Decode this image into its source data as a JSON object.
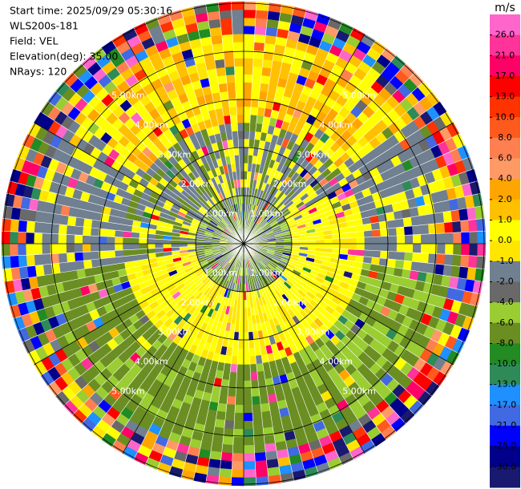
{
  "chart_data": {
    "type": "ppi",
    "header": [
      "Start time: 2025/09/29 05:30:16",
      "WLS200s-181",
      "Field: VEL",
      "Elevation(deg): 35.00",
      "NRays: 120"
    ],
    "range_rings": [
      "1.00km",
      "2.00km",
      "3.00km",
      "4.00km",
      "5.00km"
    ],
    "colorbar": {
      "unit": "m/s",
      "colors": [
        "#ff66cc",
        "#ff3399",
        "#ff0066",
        "#ff0000",
        "#ff3300",
        "#ff5a1e",
        "#ff7f50",
        "#ff9966",
        "#ffa500",
        "#ffc000",
        "#ffff00",
        "#ffe600",
        "#708090",
        "#696969",
        "#9acd32",
        "#6b8e23",
        "#228b22",
        "#2e8b57",
        "#1e90ff",
        "#4169e1",
        "#0000ff",
        "#00008b",
        "#191970"
      ],
      "ticks": [
        {
          "value": 26,
          "label": "26.0"
        },
        {
          "value": 21,
          "label": "21.0"
        },
        {
          "value": 17,
          "label": "17.0"
        },
        {
          "value": 13,
          "label": "13.0"
        },
        {
          "value": 10,
          "label": "10.0"
        },
        {
          "value": 8,
          "label": "8.0"
        },
        {
          "value": 6,
          "label": "6.0"
        },
        {
          "value": 4,
          "label": "4.0"
        },
        {
          "value": 2,
          "label": "2.0"
        },
        {
          "value": 1,
          "label": "1.0"
        },
        {
          "value": 0,
          "label": "0.0"
        },
        {
          "value": -1,
          "label": "-1.0"
        },
        {
          "value": -2,
          "label": "-2.0"
        },
        {
          "value": -4,
          "label": "-4.0"
        },
        {
          "value": -6,
          "label": "-6.0"
        },
        {
          "value": -8,
          "label": "-8.0"
        },
        {
          "value": -10,
          "label": "-10.0"
        },
        {
          "value": -13,
          "label": "-13.0"
        },
        {
          "value": -17,
          "label": "-17.0"
        },
        {
          "value": -21,
          "label": "-21.0"
        },
        {
          "value": -26,
          "label": "-26.0"
        },
        {
          "value": -30,
          "label": "-30.0"
        }
      ]
    }
  }
}
